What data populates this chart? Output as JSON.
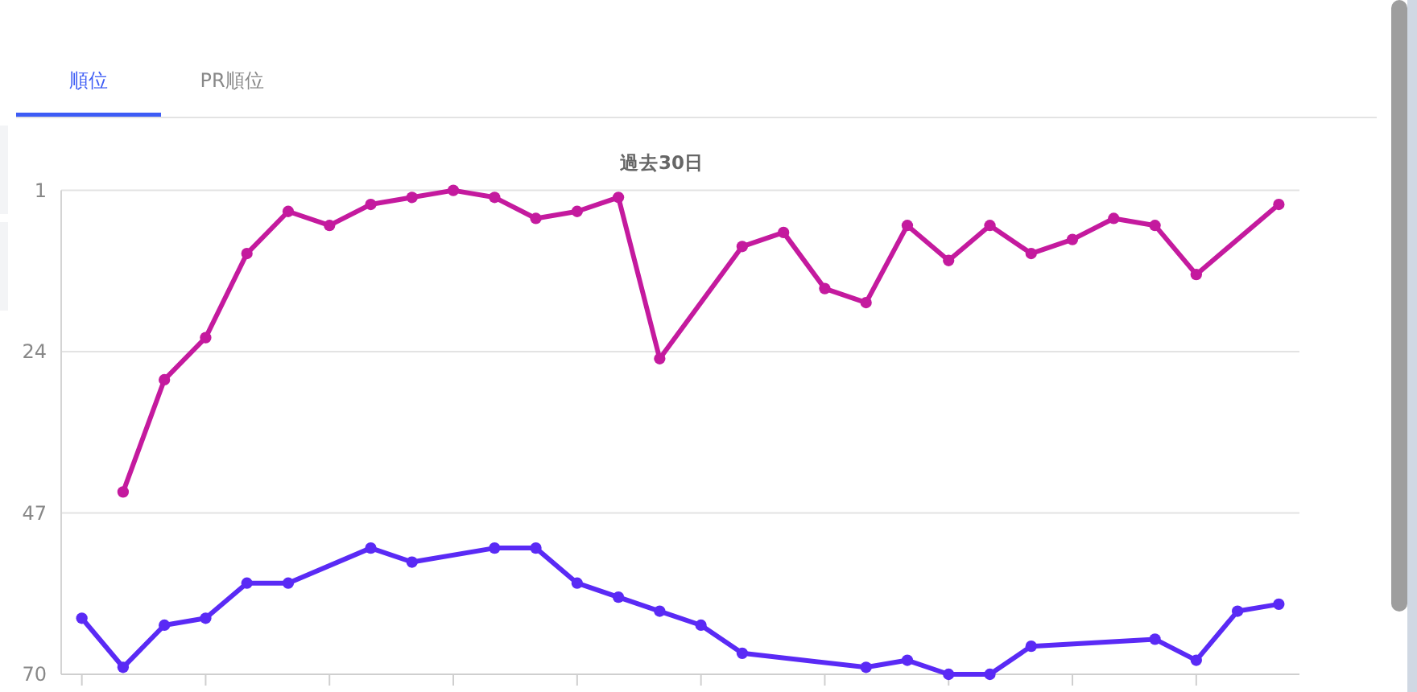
{
  "chart_data": {
    "type": "line",
    "title": "過去30日",
    "annotations": [
      "順位",
      "PR順位"
    ],
    "categories": [
      null,
      null,
      null,
      null,
      null,
      null,
      null,
      null,
      null,
      null,
      null,
      null,
      null,
      null,
      null,
      null,
      null,
      null,
      null,
      null,
      null,
      null,
      null,
      null,
      null,
      null,
      null,
      null,
      null,
      null
    ],
    "ylim": [
      70,
      1
    ],
    "yticks": [
      1,
      24,
      47,
      70
    ],
    "grid": "y",
    "marker": "circle",
    "line_style": "solid",
    "series": [
      {
        "color": "#c41a9e",
        "values": [
          null,
          44,
          28,
          22,
          10,
          4,
          6,
          3,
          2,
          1,
          2,
          5,
          4,
          2,
          25,
          null,
          9,
          7,
          15,
          17,
          6,
          11,
          6,
          10,
          8,
          5,
          6,
          13,
          null,
          3
        ]
      },
      {
        "color": "#5a2af5",
        "values": [
          62,
          69,
          63,
          62,
          57,
          57,
          null,
          52,
          54,
          null,
          52,
          52,
          57,
          59,
          61,
          63,
          67,
          null,
          null,
          69,
          68,
          70,
          70,
          66,
          null,
          null,
          65,
          68,
          61,
          60
        ]
      }
    ]
  }
}
